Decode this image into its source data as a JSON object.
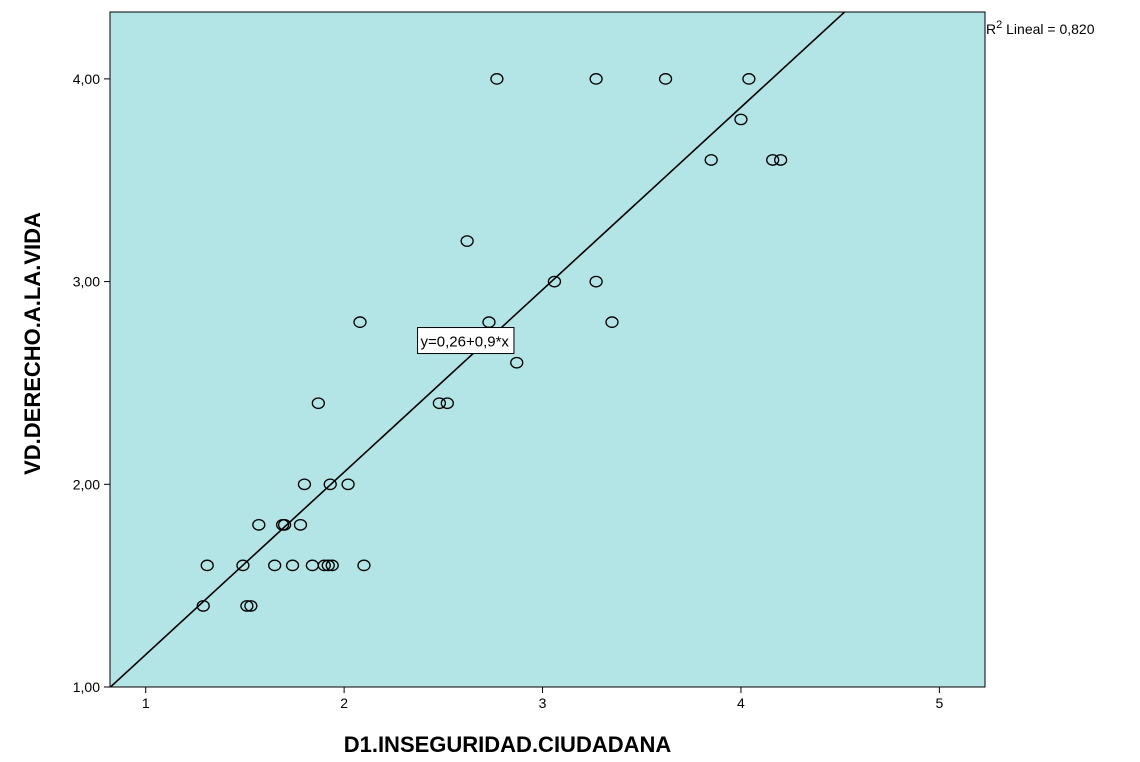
{
  "chart_data": {
    "type": "scatter",
    "xlabel": "D1.INSEGURIDAD.CIUDADANA",
    "ylabel": "VD.DERECHO.A.LA.VIDA",
    "xlim": [
      0.82,
      5.23
    ],
    "ylim": [
      1.0,
      4.33
    ],
    "x_ticks": [
      {
        "value": 1,
        "label": "1"
      },
      {
        "value": 2,
        "label": "2"
      },
      {
        "value": 3,
        "label": "3"
      },
      {
        "value": 4,
        "label": "4"
      },
      {
        "value": 5,
        "label": "5"
      }
    ],
    "y_ticks": [
      {
        "value": 1,
        "label": "1,00"
      },
      {
        "value": 2,
        "label": "2,00"
      },
      {
        "value": 3,
        "label": "3,00"
      },
      {
        "value": 4,
        "label": "4,00"
      }
    ],
    "grid": false,
    "plot_background": "#b3e5e7",
    "marker_color": "#000000",
    "points": [
      {
        "x": 2.77,
        "y": 4.0
      },
      {
        "x": 3.27,
        "y": 4.0
      },
      {
        "x": 3.62,
        "y": 4.0
      },
      {
        "x": 4.04,
        "y": 4.0
      },
      {
        "x": 4.0,
        "y": 3.8
      },
      {
        "x": 3.85,
        "y": 3.6
      },
      {
        "x": 4.16,
        "y": 3.6
      },
      {
        "x": 4.2,
        "y": 3.6
      },
      {
        "x": 2.62,
        "y": 3.2
      },
      {
        "x": 3.06,
        "y": 3.0
      },
      {
        "x": 3.27,
        "y": 3.0
      },
      {
        "x": 2.08,
        "y": 2.8
      },
      {
        "x": 2.73,
        "y": 2.8
      },
      {
        "x": 3.35,
        "y": 2.8
      },
      {
        "x": 2.87,
        "y": 2.6
      },
      {
        "x": 1.87,
        "y": 2.4
      },
      {
        "x": 2.48,
        "y": 2.4
      },
      {
        "x": 2.52,
        "y": 2.4
      },
      {
        "x": 1.8,
        "y": 2.0
      },
      {
        "x": 1.93,
        "y": 2.0
      },
      {
        "x": 2.02,
        "y": 2.0
      },
      {
        "x": 1.57,
        "y": 1.8
      },
      {
        "x": 1.69,
        "y": 1.8
      },
      {
        "x": 1.7,
        "y": 1.8
      },
      {
        "x": 1.78,
        "y": 1.8
      },
      {
        "x": 1.31,
        "y": 1.6
      },
      {
        "x": 1.49,
        "y": 1.6
      },
      {
        "x": 1.65,
        "y": 1.6
      },
      {
        "x": 1.74,
        "y": 1.6
      },
      {
        "x": 1.84,
        "y": 1.6
      },
      {
        "x": 1.9,
        "y": 1.6
      },
      {
        "x": 1.92,
        "y": 1.6
      },
      {
        "x": 1.94,
        "y": 1.6
      },
      {
        "x": 2.1,
        "y": 1.6
      },
      {
        "x": 1.29,
        "y": 1.4
      },
      {
        "x": 1.51,
        "y": 1.4
      },
      {
        "x": 1.53,
        "y": 1.4
      }
    ],
    "fit_line": {
      "intercept": 0.26,
      "slope": 0.9
    },
    "equation_label": {
      "text": "y=0,26+0,9*x",
      "x": 2.37,
      "y": 2.65
    },
    "r2_label": {
      "prefix": "R",
      "sup": "2",
      "text": " Lineal = 0,820"
    }
  }
}
